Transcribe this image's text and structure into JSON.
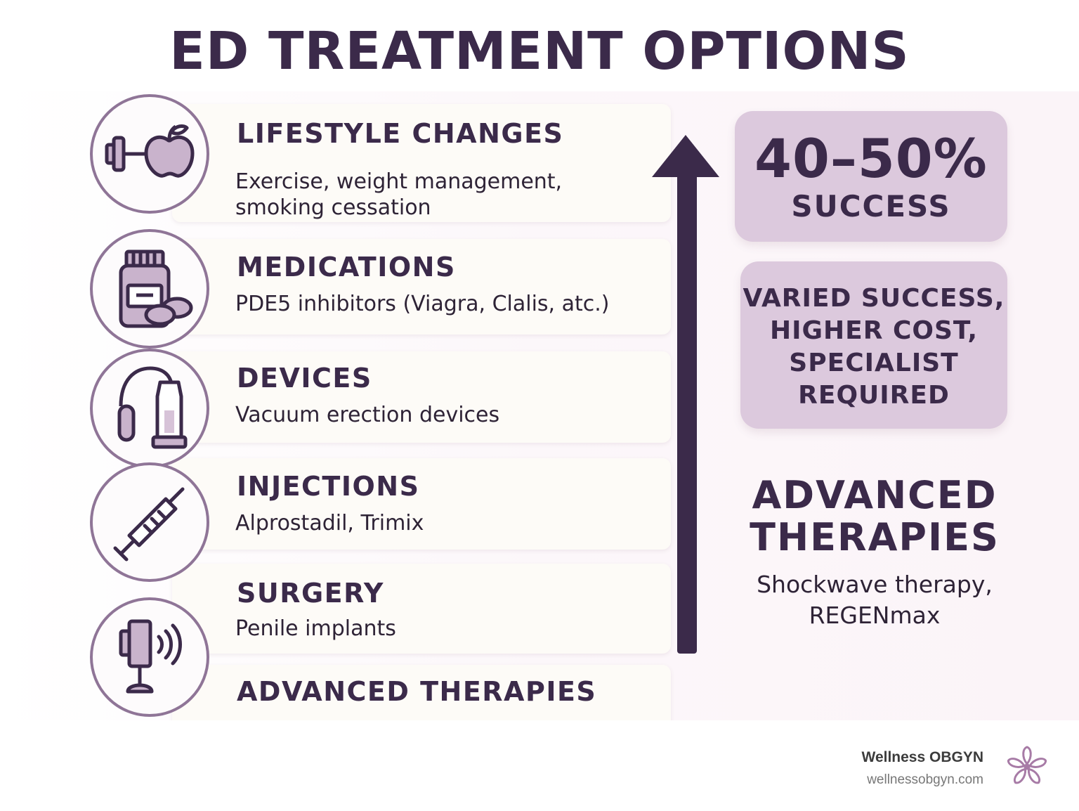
{
  "title": "ED TREATMENT OPTIONS",
  "treatments": [
    {
      "title": "LIFESTYLE CHANGES",
      "desc_lines": [
        "Exercise, weight management,",
        "smoking cessation"
      ],
      "icon": "dumbbell-apple-icon"
    },
    {
      "title": "MEDICATIONS",
      "desc_lines": [
        "PDE5 inhibitors (Viagra, Clalis, atc.)"
      ],
      "icon": "pill-bottle-icon"
    },
    {
      "title": "DEVICES",
      "desc_lines": [
        "Vacuum erection devices"
      ],
      "icon": "vacuum-pump-icon"
    },
    {
      "title": "INJECTIONS",
      "desc_lines": [
        "Alprostadil, Trimix"
      ],
      "icon": "syringe-icon"
    },
    {
      "title": "SURGERY",
      "desc_lines": [
        "Penile implants"
      ],
      "icon": "implant-icon"
    },
    {
      "title": "ADVANCED THERAPIES",
      "desc_lines": [],
      "icon": "shockwave-icon"
    }
  ],
  "success_box": {
    "value": "40–50%",
    "label": "SUCCESS"
  },
  "cost_box": {
    "lines": [
      "VARIED SUCCESS,",
      "HIGHER COST,",
      "SPECIALIST",
      "REQUIRED"
    ]
  },
  "advanced": {
    "title_lines": [
      "ADVANCED",
      "THERAPIES"
    ],
    "desc_lines": [
      "Shockwave therapy,",
      "REGENmax"
    ]
  },
  "brand": {
    "name": "Wellness OBGYN",
    "url": "wellnessobgyn.com"
  },
  "colors": {
    "primary": "#3b2a4a",
    "accent": "#8f7597",
    "box": "#dcc9dd"
  }
}
